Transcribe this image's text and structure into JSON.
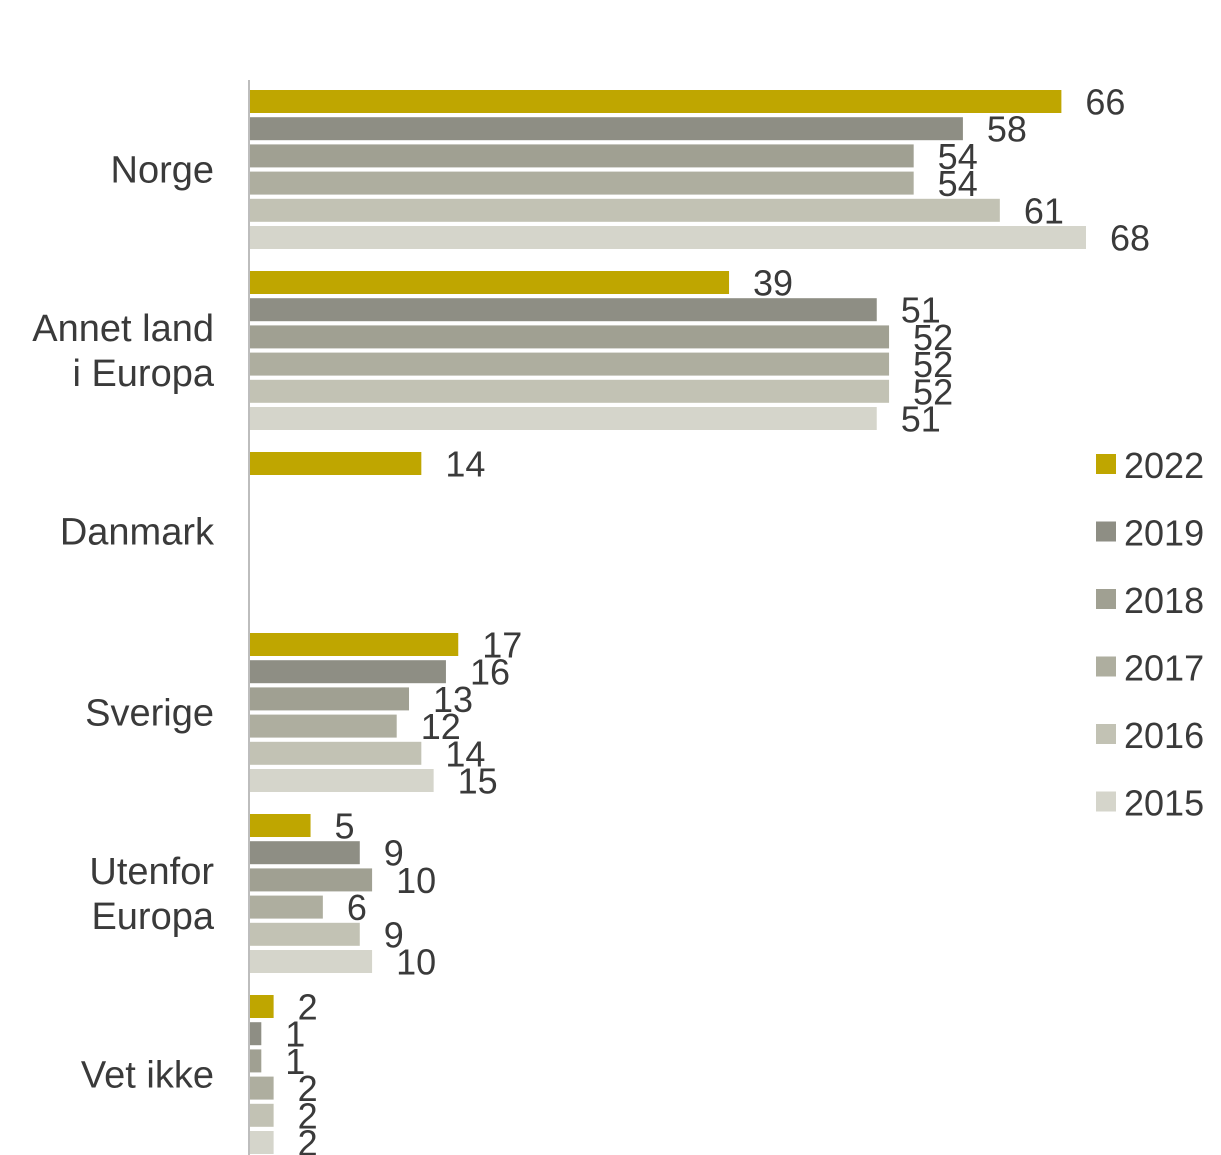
{
  "chart_data": {
    "type": "bar",
    "orientation": "horizontal",
    "title": "",
    "xlabel": "",
    "ylabel": "",
    "xlim": [
      0,
      68
    ],
    "grid": false,
    "legend_position": "right",
    "categories": [
      [
        "Norge"
      ],
      [
        "Annet land",
        "i Europa"
      ],
      [
        "Danmark"
      ],
      [
        "Sverige"
      ],
      [
        "Utenfor",
        "Europa"
      ],
      [
        "Vet ikke"
      ]
    ],
    "series": [
      {
        "name": "2022",
        "color": "#bfa600",
        "values": [
          66,
          39,
          14,
          17,
          5,
          2
        ]
      },
      {
        "name": "2019",
        "color": "#8e8e84",
        "values": [
          58,
          51,
          null,
          16,
          9,
          1
        ]
      },
      {
        "name": "2018",
        "color": "#a0a092",
        "values": [
          54,
          52,
          null,
          13,
          10,
          1
        ]
      },
      {
        "name": "2017",
        "color": "#aeae9f",
        "values": [
          54,
          52,
          null,
          12,
          6,
          2
        ]
      },
      {
        "name": "2016",
        "color": "#c2c2b4",
        "values": [
          61,
          52,
          null,
          14,
          9,
          2
        ]
      },
      {
        "name": "2015",
        "color": "#d5d5cb",
        "values": [
          68,
          51,
          null,
          15,
          10,
          2
        ]
      }
    ]
  }
}
